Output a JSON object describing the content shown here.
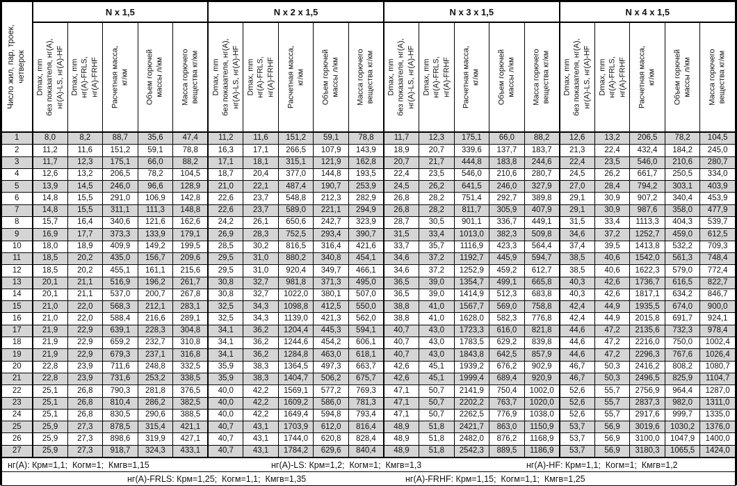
{
  "header": {
    "first_col": "Число жил, пар, троек,\nчетверок",
    "groups": [
      "N x 1,5",
      "N x 2 x 1,5",
      "N x 3 x 1,5",
      "N x 4 x 1,5"
    ],
    "columns": [
      "Dmax, mm\nбез показателя, нг(А),\nнг(А)-LS, нг(А)-HF",
      "Dmax, mm\nнг(А)-FRLS,\nнг(А)-FRHF",
      "Расчетная масса,\nкг/км",
      "Объем горючей\nмассы л/км",
      "Масса горючего\nвещества кг/км"
    ]
  },
  "rows": [
    [
      "1",
      "8,0",
      "8,2",
      "88,7",
      "35,6",
      "47,4",
      "11,2",
      "11,6",
      "151,2",
      "59,1",
      "78,8",
      "11,7",
      "12,3",
      "175,1",
      "66,0",
      "88,2",
      "12,6",
      "13,2",
      "206,5",
      "78,2",
      "104,5"
    ],
    [
      "2",
      "11,2",
      "11,6",
      "151,2",
      "59,1",
      "78,8",
      "16,3",
      "17,1",
      "266,5",
      "107,9",
      "143,9",
      "18,9",
      "20,7",
      "339,6",
      "137,7",
      "183,7",
      "21,3",
      "22,4",
      "432,4",
      "184,2",
      "245,0"
    ],
    [
      "3",
      "11,7",
      "12,3",
      "175,1",
      "66,0",
      "88,2",
      "17,1",
      "18,1",
      "315,1",
      "121,9",
      "162,8",
      "20,7",
      "21,7",
      "444,8",
      "183,8",
      "244,6",
      "22,4",
      "23,5",
      "546,0",
      "210,6",
      "280,7"
    ],
    [
      "4",
      "12,6",
      "13,2",
      "206,5",
      "78,2",
      "104,5",
      "18,7",
      "20,4",
      "377,0",
      "144,8",
      "193,5",
      "22,4",
      "23,5",
      "546,0",
      "210,6",
      "280,7",
      "24,5",
      "26,2",
      "661,7",
      "250,5",
      "334,0"
    ],
    [
      "5",
      "13,9",
      "14,5",
      "246,0",
      "96,6",
      "128,9",
      "21,0",
      "22,1",
      "487,4",
      "190,7",
      "253,9",
      "24,5",
      "26,2",
      "641,5",
      "246,0",
      "327,9",
      "27,0",
      "28,4",
      "794,2",
      "303,1",
      "403,9"
    ],
    [
      "6",
      "14,8",
      "15,5",
      "291,0",
      "106,9",
      "142,8",
      "22,6",
      "23,7",
      "548,8",
      "212,3",
      "282,9",
      "26,8",
      "28,2",
      "751,4",
      "292,7",
      "389,8",
      "29,1",
      "30,9",
      "907,2",
      "340,4",
      "453,9"
    ],
    [
      "7",
      "14,8",
      "15,5",
      "311,1",
      "111,3",
      "148,8",
      "22,6",
      "23,7",
      "589,0",
      "221,1",
      "294,9",
      "26,8",
      "28,2",
      "811,7",
      "305,9",
      "407,9",
      "29,1",
      "30,9",
      "987,6",
      "358,0",
      "477,9"
    ],
    [
      "8",
      "15,7",
      "16,4",
      "340,6",
      "121,6",
      "162,6",
      "24,2",
      "26,1",
      "650,6",
      "242,7",
      "323,9",
      "28,7",
      "30,5",
      "901,1",
      "336,7",
      "449,1",
      "31,5",
      "33,4",
      "1113,3",
      "404,3",
      "539,7"
    ],
    [
      "9",
      "16,9",
      "17,7",
      "373,3",
      "133,9",
      "179,1",
      "26,9",
      "28,3",
      "752,5",
      "293,4",
      "390,7",
      "31,5",
      "33,4",
      "1013,0",
      "382,3",
      "509,8",
      "34,6",
      "37,2",
      "1252,7",
      "459,0",
      "612,5"
    ],
    [
      "10",
      "18,0",
      "18,9",
      "409,9",
      "149,2",
      "199,5",
      "28,5",
      "30,2",
      "816,5",
      "316,4",
      "421,6",
      "33,7",
      "35,7",
      "1116,9",
      "423,3",
      "564,4",
      "37,4",
      "39,5",
      "1413,8",
      "532,2",
      "709,3"
    ],
    [
      "11",
      "18,5",
      "20,2",
      "435,0",
      "156,7",
      "209,6",
      "29,5",
      "31,0",
      "880,2",
      "340,8",
      "454,1",
      "34,6",
      "37,2",
      "1192,7",
      "445,9",
      "594,7",
      "38,5",
      "40,6",
      "1542,0",
      "561,3",
      "748,4"
    ],
    [
      "12",
      "18,5",
      "20,2",
      "455,1",
      "161,1",
      "215,6",
      "29,5",
      "31,0",
      "920,4",
      "349,7",
      "466,1",
      "34,6",
      "37,2",
      "1252,9",
      "459,2",
      "612,7",
      "38,5",
      "40,6",
      "1622,3",
      "579,0",
      "772,4"
    ],
    [
      "13",
      "20,1",
      "21,1",
      "516,9",
      "196,2",
      "261,7",
      "30,8",
      "32,7",
      "981,8",
      "371,3",
      "495,0",
      "36,5",
      "39,0",
      "1354,7",
      "499,1",
      "665,8",
      "40,3",
      "42,6",
      "1736,7",
      "616,5",
      "822,7"
    ],
    [
      "14",
      "20,1",
      "21,1",
      "537,0",
      "200,7",
      "267,8",
      "30,8",
      "32,7",
      "1022,0",
      "380,1",
      "507,0",
      "36,5",
      "39,0",
      "1414,9",
      "512,3",
      "683,8",
      "40,3",
      "42,6",
      "1817,1",
      "634,2",
      "846,7"
    ],
    [
      "15",
      "21,0",
      "22,0",
      "568,3",
      "212,1",
      "283,1",
      "32,5",
      "34,3",
      "1098,8",
      "412,5",
      "550,0",
      "38,8",
      "41,0",
      "1567,7",
      "569,0",
      "758,8",
      "42,4",
      "44,9",
      "1935,5",
      "674,0",
      "900,0"
    ],
    [
      "16",
      "21,0",
      "22,0",
      "588,4",
      "216,6",
      "289,1",
      "32,5",
      "34,3",
      "1139,0",
      "421,3",
      "562,0",
      "38,8",
      "41,0",
      "1628,0",
      "582,3",
      "776,8",
      "42,4",
      "44,9",
      "2015,8",
      "691,7",
      "924,1"
    ],
    [
      "17",
      "21,9",
      "22,9",
      "639,1",
      "228,3",
      "304,8",
      "34,1",
      "36,2",
      "1204,4",
      "445,3",
      "594,1",
      "40,7",
      "43,0",
      "1723,3",
      "616,0",
      "821,8",
      "44,6",
      "47,2",
      "2135,6",
      "732,3",
      "978,4"
    ],
    [
      "18",
      "21,9",
      "22,9",
      "659,2",
      "232,7",
      "310,8",
      "34,1",
      "36,2",
      "1244,6",
      "454,2",
      "606,1",
      "40,7",
      "43,0",
      "1783,5",
      "629,2",
      "839,8",
      "44,6",
      "47,2",
      "2216,0",
      "750,0",
      "1002,4"
    ],
    [
      "19",
      "21,9",
      "22,9",
      "679,3",
      "237,1",
      "316,8",
      "34,1",
      "36,2",
      "1284,8",
      "463,0",
      "618,1",
      "40,7",
      "43,0",
      "1843,8",
      "642,5",
      "857,9",
      "44,6",
      "47,2",
      "2296,3",
      "767,6",
      "1026,4"
    ],
    [
      "20",
      "22,8",
      "23,9",
      "711,6",
      "248,8",
      "332,5",
      "35,9",
      "38,3",
      "1364,5",
      "497,3",
      "663,7",
      "42,6",
      "45,1",
      "1939,2",
      "676,2",
      "902,9",
      "46,7",
      "50,3",
      "2416,2",
      "808,2",
      "1080,7"
    ],
    [
      "21",
      "22,8",
      "23,9",
      "731,6",
      "253,2",
      "338,5",
      "35,9",
      "38,3",
      "1404,7",
      "506,2",
      "675,7",
      "42,6",
      "45,1",
      "1999,4",
      "689,4",
      "920,9",
      "46,7",
      "50,3",
      "2496,5",
      "825,9",
      "1104,7"
    ],
    [
      "22",
      "25,1",
      "26,8",
      "790,3",
      "281,8",
      "376,5",
      "40,0",
      "42,2",
      "1569,1",
      "577,2",
      "769,3",
      "47,1",
      "50,7",
      "2141,9",
      "750,4",
      "1002,0",
      "52,6",
      "55,7",
      "2756,9",
      "964,4",
      "1287,0"
    ],
    [
      "23",
      "25,1",
      "26,8",
      "810,4",
      "286,2",
      "382,5",
      "40,0",
      "42,2",
      "1609,2",
      "586,0",
      "781,3",
      "47,1",
      "50,7",
      "2202,2",
      "763,7",
      "1020,0",
      "52,6",
      "55,7",
      "2837,3",
      "982,0",
      "1311,0"
    ],
    [
      "24",
      "25,1",
      "26,8",
      "830,5",
      "290,6",
      "388,5",
      "40,0",
      "42,2",
      "1649,4",
      "594,8",
      "793,4",
      "47,1",
      "50,7",
      "2262,5",
      "776,9",
      "1038,0",
      "52,6",
      "55,7",
      "2917,6",
      "999,7",
      "1335,0"
    ],
    [
      "25",
      "25,9",
      "27,3",
      "878,5",
      "315,4",
      "421,1",
      "40,7",
      "43,1",
      "1703,9",
      "612,0",
      "816,4",
      "48,9",
      "51,8",
      "2421,7",
      "863,0",
      "1150,9",
      "53,7",
      "56,9",
      "3019,6",
      "1030,2",
      "1376,0"
    ],
    [
      "26",
      "25,9",
      "27,3",
      "898,6",
      "319,9",
      "427,1",
      "40,7",
      "43,1",
      "1744,0",
      "620,8",
      "828,4",
      "48,9",
      "51,8",
      "2482,0",
      "876,2",
      "1168,9",
      "53,7",
      "56,9",
      "3100,0",
      "1047,9",
      "1400,0"
    ],
    [
      "27",
      "25,9",
      "27,3",
      "918,7",
      "324,3",
      "433,1",
      "40,7",
      "43,1",
      "1784,2",
      "629,6",
      "840,4",
      "48,9",
      "51,8",
      "2542,3",
      "889,5",
      "1186,9",
      "53,7",
      "56,9",
      "3180,3",
      "1065,5",
      "1424,0"
    ]
  ],
  "footer": {
    "line1": [
      "нг(А): Крм=1,1;  Когм=1;  Кмгв=1,15",
      "нг(А)-LS: Крм=1,2;  Когм=1;  Кмгв=1,3",
      "нг(А)-HF: Крм=1,1;  Когм=1;  Кмгв=1,2"
    ],
    "line2": [
      "нг(А)-FRLS: Крм=1,25;  Когм=1,1;  Кмгв=1,35",
      "нг(А)-FRHF: Крм=1,15;  Когм=1,1;  Кмгв=1,25"
    ]
  },
  "colors": {
    "stripe": "#d5d5d5",
    "border": "#000000"
  }
}
